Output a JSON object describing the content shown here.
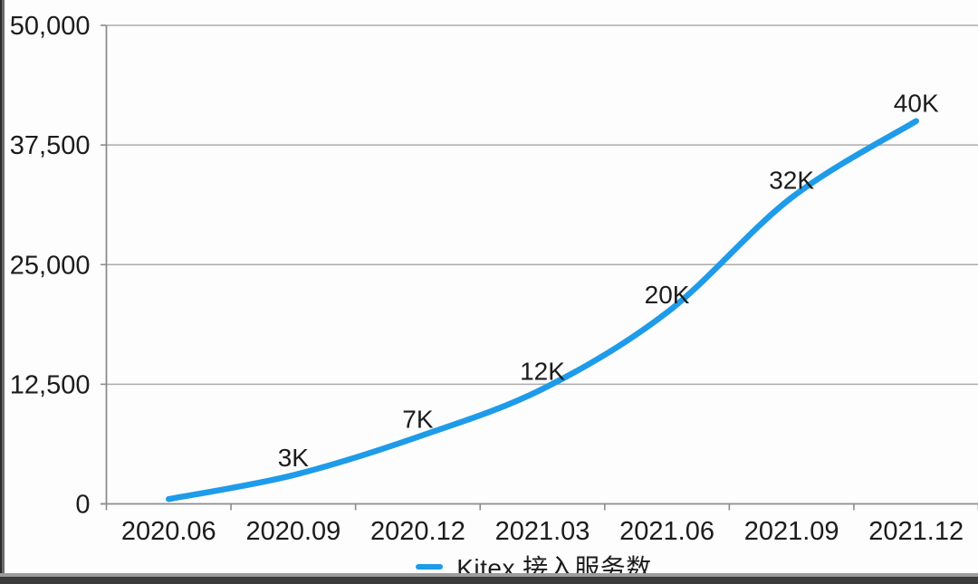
{
  "frame": {
    "left_edge_dark": "#2c2c2c",
    "left_edge_light": "#6a6a6a",
    "bottom_edge_light": "#9c9c9c",
    "bottom_edge_dark": "#3c3c3c",
    "background": "#fdfdfd"
  },
  "colors": {
    "line": "#1e9be9",
    "grid": "#ababab",
    "axis": "#8c8c8c",
    "text": "#1c1c1c"
  },
  "legend": {
    "label": "Kitex 接入服务数",
    "swatch": "line-dash"
  },
  "chart_data": {
    "type": "line",
    "title": "",
    "xlabel": "",
    "ylabel": "",
    "categories": [
      "2020.06",
      "2020.09",
      "2020.12",
      "2021.03",
      "2021.06",
      "2021.09",
      "2021.12"
    ],
    "series": [
      {
        "name": "Kitex 接入服务数",
        "values": [
          500,
          3000,
          7000,
          12000,
          20000,
          32000,
          40000
        ],
        "point_labels": [
          "",
          "3K",
          "7K",
          "12K",
          "20K",
          "32K",
          "40K"
        ],
        "color": "#1e9be9"
      }
    ],
    "y_axis": {
      "min": 0,
      "max": 50000,
      "tick_values": [
        0,
        12500,
        25000,
        37500,
        50000
      ],
      "tick_labels": [
        "0",
        "12,500",
        "25,000",
        "37,500",
        "50,000"
      ]
    },
    "grid": true,
    "legend_position": "bottom"
  }
}
